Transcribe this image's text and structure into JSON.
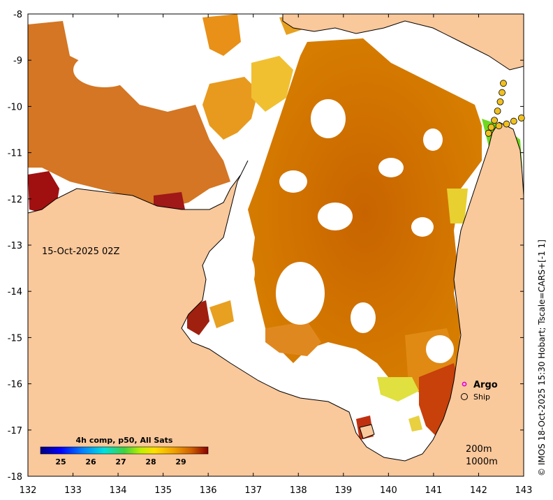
{
  "map": {
    "date_label": "15-Oct-2025 02Z",
    "side_caption": "© IMOS 18-Oct-2025 15:30 Hobart; Tscale=CARS+[-1 1]",
    "x_ticks": [
      "132",
      "133",
      "134",
      "135",
      "136",
      "137",
      "138",
      "139",
      "140",
      "141",
      "142",
      "143"
    ],
    "y_ticks": [
      "-8",
      "-9",
      "-10",
      "-11",
      "-12",
      "-13",
      "-14",
      "-15",
      "-16",
      "-17",
      "-18"
    ],
    "lon_range": [
      132,
      143
    ],
    "lat_range": [
      -18,
      -8
    ],
    "colorbar": {
      "title": "4h comp, p50, All Sats",
      "labels": [
        "25",
        "26",
        "27",
        "28",
        "29"
      ]
    },
    "legend": {
      "argo_label": "Argo",
      "ship_label": "Ship"
    },
    "depth_labels": [
      "200m",
      "1000m"
    ],
    "ship_track": [
      {
        "lon": 142.55,
        "lat": -9.5
      },
      {
        "lon": 142.52,
        "lat": -9.7
      },
      {
        "lon": 142.48,
        "lat": -9.9
      },
      {
        "lon": 142.42,
        "lat": -10.1
      },
      {
        "lon": 142.35,
        "lat": -10.3
      },
      {
        "lon": 142.28,
        "lat": -10.45
      },
      {
        "lon": 142.22,
        "lat": -10.58
      },
      {
        "lon": 142.62,
        "lat": -10.38
      },
      {
        "lon": 142.78,
        "lat": -10.32
      },
      {
        "lon": 142.95,
        "lat": -10.25
      },
      {
        "lon": 142.45,
        "lat": -10.42
      }
    ],
    "colors": {
      "land": "#f9c89b",
      "sea_nodata": "#ffffff",
      "argo": "#e000e0"
    }
  }
}
